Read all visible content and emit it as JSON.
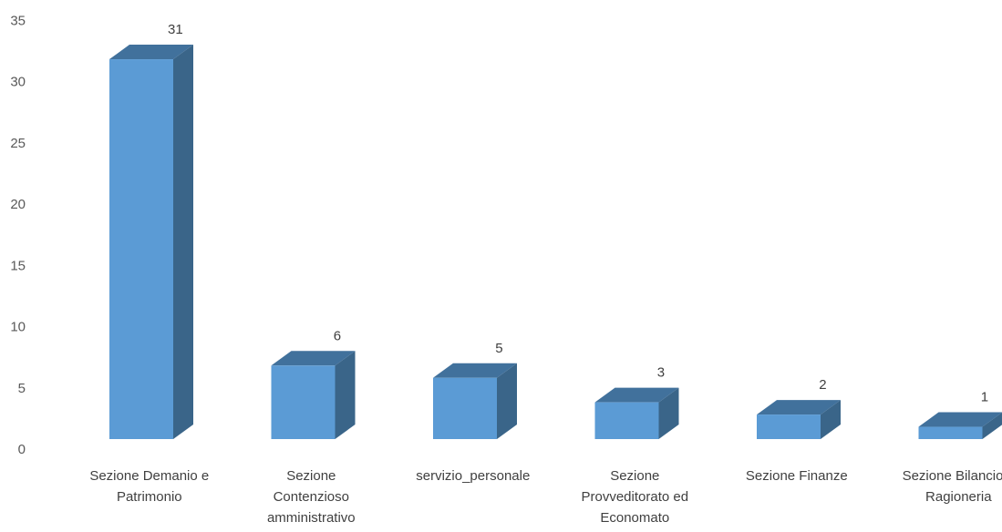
{
  "chart_data": {
    "type": "bar",
    "style": "3d-column",
    "categories": [
      "Sezione Demanio e Patrimonio",
      "Sezione Contenzioso amministrativo",
      "servizio_personale",
      "Sezione Provveditorato ed Economato",
      "Sezione Finanze",
      "Sezione Bilancio e Ragioneria"
    ],
    "category_label_lines": [
      [
        "Sezione Demanio e",
        "Patrimonio"
      ],
      [
        "Sezione",
        "Contenzioso",
        "amministrativo"
      ],
      [
        "servizio_personale"
      ],
      [
        "Sezione",
        "Provveditorato ed",
        "Economato"
      ],
      [
        "Sezione Finanze"
      ],
      [
        "Sezione Bilancio e",
        "Ragioneria"
      ]
    ],
    "values": [
      31,
      6,
      5,
      3,
      2,
      1
    ],
    "data_labels": [
      "31",
      "6",
      "5",
      "3",
      "2",
      "1"
    ],
    "ylim": [
      0,
      35
    ],
    "yticks": [
      "0",
      "5",
      "10",
      "15",
      "20",
      "25",
      "30",
      "35"
    ],
    "title": "",
    "xlabel": "",
    "ylabel": "",
    "grid": false,
    "legend": "none",
    "colors": {
      "front": "#5B9BD5",
      "side": "#3A6589",
      "top": "#41719C"
    }
  }
}
